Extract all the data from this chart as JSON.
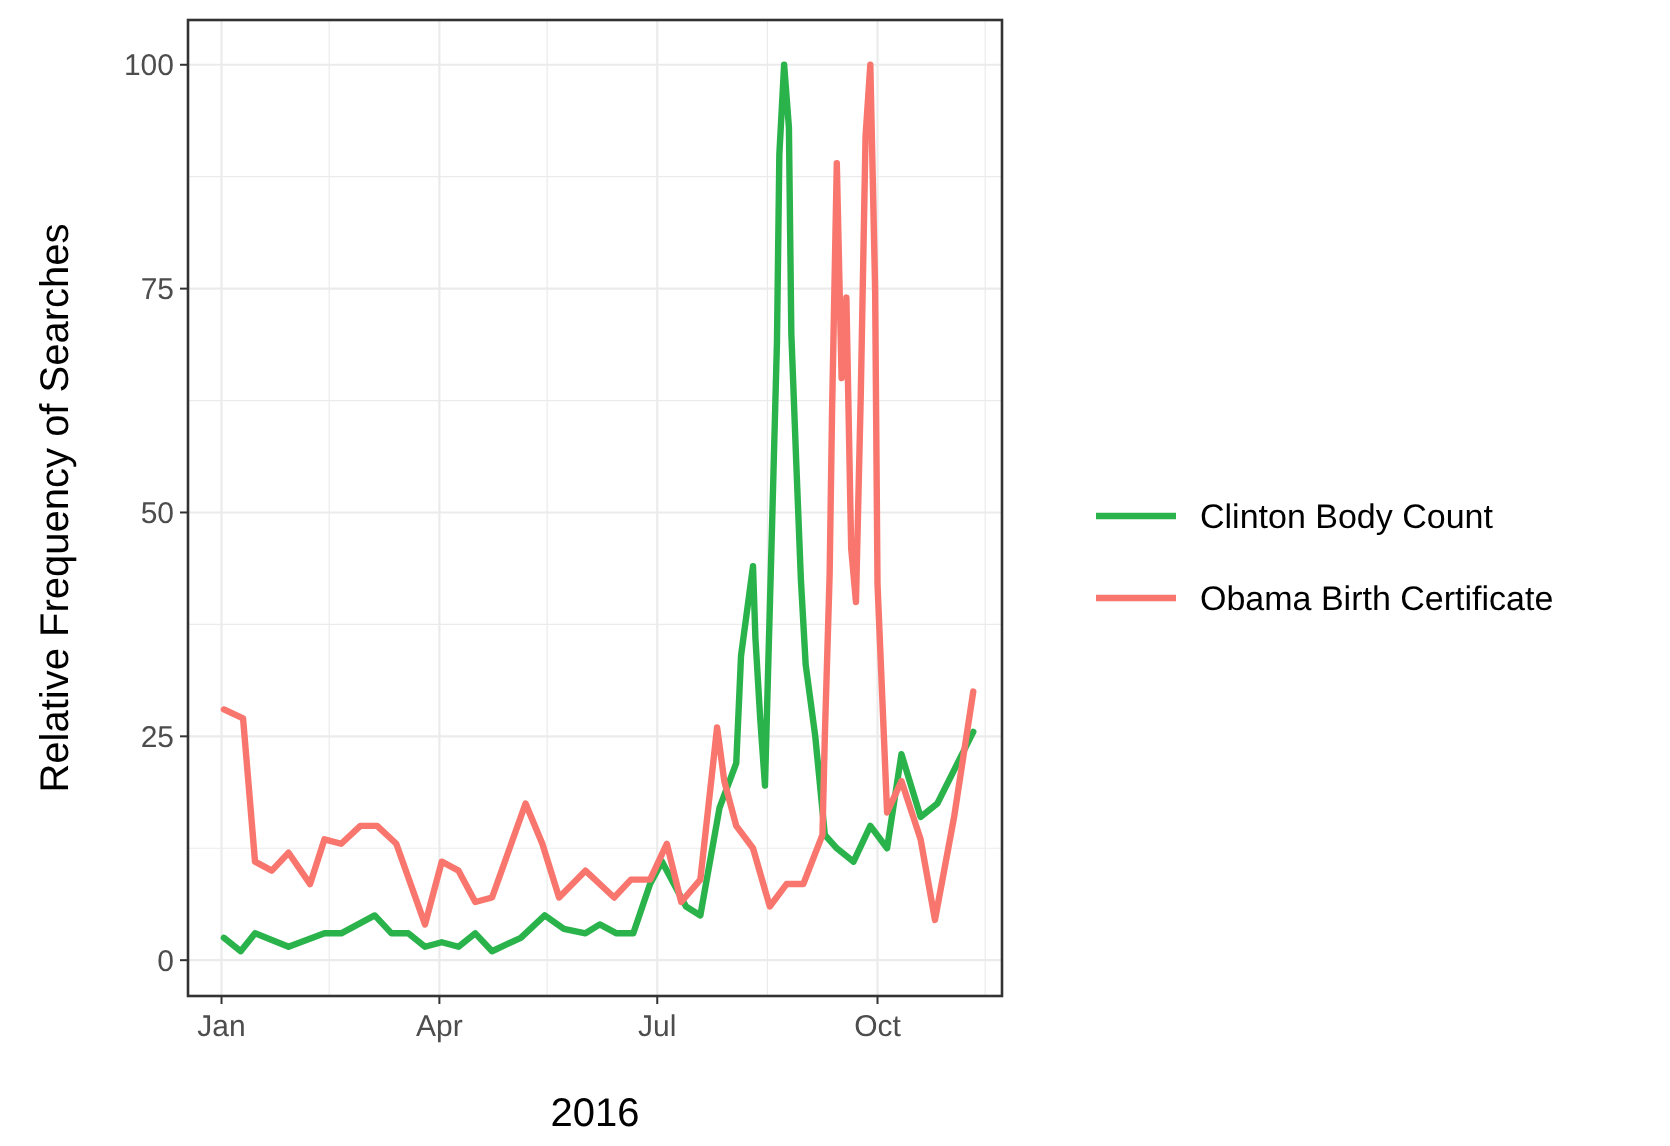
{
  "chart_data": {
    "type": "line",
    "xlabel": "2016",
    "ylabel": "Relative Frequency of Searches",
    "xlim": [
      "2015-12-18",
      "2016-11-22"
    ],
    "xticks": [
      {
        "value": "2016-01-01",
        "label": "Jan"
      },
      {
        "value": "2016-02-15",
        "label": null
      },
      {
        "value": "2016-04-01",
        "label": "Apr"
      },
      {
        "value": "2016-05-16",
        "label": null
      },
      {
        "value": "2016-07-01",
        "label": "Jul"
      },
      {
        "value": "2016-08-16",
        "label": null
      },
      {
        "value": "2016-10-01",
        "label": "Oct"
      },
      {
        "value": "2016-11-15",
        "label": null
      }
    ],
    "ylim": [
      -4,
      105
    ],
    "yticks": [
      0,
      {
        "value": 12.5,
        "label": null
      },
      25,
      {
        "value": 37.5,
        "label": null
      },
      50,
      {
        "value": 62.5,
        "label": null
      },
      75,
      {
        "value": 87.5,
        "label": null
      },
      100
    ],
    "grid": true,
    "legend": "right",
    "line_style": "solid",
    "marker": "none",
    "series": [
      {
        "name": "Clinton Body Count",
        "color": "#2ab34b",
        "x": [
          "2016-01-02",
          "2016-01-09",
          "2016-01-15",
          "2016-01-29",
          "2016-02-13",
          "2016-02-20",
          "2016-03-05",
          "2016-03-12",
          "2016-03-19",
          "2016-03-26",
          "2016-04-02",
          "2016-04-09",
          "2016-04-16",
          "2016-04-23",
          "2016-05-05",
          "2016-05-15",
          "2016-05-23",
          "2016-06-01",
          "2016-06-07",
          "2016-06-14",
          "2016-06-21",
          "2016-06-28",
          "2016-07-03",
          "2016-07-13",
          "2016-07-19",
          "2016-07-27",
          "2016-08-03",
          "2016-08-05",
          "2016-08-10",
          "2016-08-11",
          "2016-08-13",
          "2016-08-15",
          "2016-08-18",
          "2016-08-20",
          "2016-08-21",
          "2016-08-23",
          "2016-08-25",
          "2016-08-26",
          "2016-08-28",
          "2016-08-30",
          "2016-09-01",
          "2016-09-05",
          "2016-09-09",
          "2016-09-14",
          "2016-09-21",
          "2016-09-28",
          "2016-10-05",
          "2016-10-11",
          "2016-10-19",
          "2016-10-26",
          "2016-11-10"
        ],
        "values": [
          2.5,
          1,
          3,
          1.5,
          3,
          3,
          5,
          3,
          3,
          1.5,
          2,
          1.5,
          3,
          1,
          2.5,
          5,
          3.5,
          3,
          4,
          3,
          3,
          8.5,
          11,
          6,
          5,
          17,
          22,
          34,
          44,
          36,
          27,
          19.5,
          49,
          69,
          90,
          100,
          93,
          70,
          56,
          42.5,
          33,
          25,
          14,
          12.5,
          11,
          15,
          12.5,
          23,
          16,
          17.5,
          25.5
        ]
      },
      {
        "name": "Obama Birth Certificate",
        "color": "#f8766d",
        "x": [
          "2016-01-02",
          "2016-01-10",
          "2016-01-15",
          "2016-01-22",
          "2016-01-29",
          "2016-02-07",
          "2016-02-13",
          "2016-02-20",
          "2016-02-28",
          "2016-03-06",
          "2016-03-14",
          "2016-03-26",
          "2016-04-02",
          "2016-04-09",
          "2016-04-16",
          "2016-04-23",
          "2016-05-07",
          "2016-05-14",
          "2016-05-21",
          "2016-06-01",
          "2016-06-13",
          "2016-06-20",
          "2016-06-28",
          "2016-07-05",
          "2016-07-11",
          "2016-07-19",
          "2016-07-26",
          "2016-07-29",
          "2016-08-03",
          "2016-08-10",
          "2016-08-17",
          "2016-08-24",
          "2016-08-31",
          "2016-09-08",
          "2016-09-09",
          "2016-09-11",
          "2016-09-12",
          "2016-09-14",
          "2016-09-16",
          "2016-09-18",
          "2016-09-20",
          "2016-09-22",
          "2016-09-24",
          "2016-09-26",
          "2016-09-28",
          "2016-09-30",
          "2016-10-01",
          "2016-10-05",
          "2016-10-11",
          "2016-10-19",
          "2016-10-25",
          "2016-11-02",
          "2016-11-10"
        ],
        "values": [
          28,
          27,
          11,
          10,
          12,
          8.5,
          13.5,
          13,
          15,
          15,
          13,
          4,
          11,
          10,
          6.5,
          7,
          17.5,
          13,
          7,
          10,
          7,
          9,
          9,
          13,
          6.5,
          9,
          26,
          20,
          15,
          12.5,
          6,
          8.5,
          8.5,
          14,
          25,
          43,
          61,
          89,
          65,
          74,
          46,
          40,
          63,
          92,
          100,
          75,
          42,
          16.5,
          20,
          13.5,
          4.5,
          16,
          30
        ]
      }
    ]
  }
}
